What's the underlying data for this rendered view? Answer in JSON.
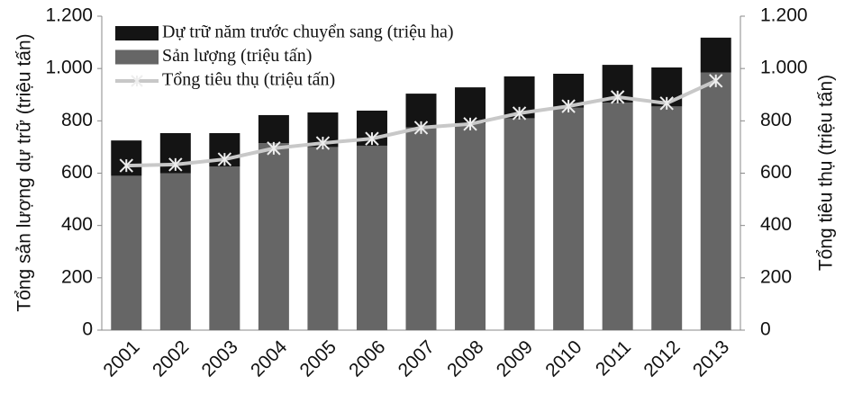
{
  "chart_data": {
    "type": "bar",
    "categories": [
      "2001",
      "2002",
      "2003",
      "2004",
      "2005",
      "2006",
      "2007",
      "2008",
      "2009",
      "2010",
      "2011",
      "2012",
      "2013"
    ],
    "series": [
      {
        "name": "Sản lượng (triệu tấn)",
        "color": "#666666",
        "stack": "a",
        "values": [
          590,
          600,
          625,
          715,
          700,
          705,
          775,
          790,
          810,
          850,
          870,
          855,
          985
        ]
      },
      {
        "name": "Dự trữ năm trước chuyển sang (triệu ha)",
        "color": "#141414",
        "stack": "a",
        "values": [
          135,
          153,
          128,
          107,
          132,
          134,
          129,
          138,
          160,
          130,
          144,
          149,
          133
        ]
      },
      {
        "name": "Tổng tiêu thụ (triệu tấn)",
        "color": "#c8c8c8",
        "type": "line",
        "axis": "y2",
        "values": [
          629,
          633,
          653,
          695,
          715,
          732,
          774,
          788,
          829,
          856,
          891,
          867,
          953
        ]
      }
    ],
    "ylabel": "Tổng sản lượng dự trữ (triệu tấn)",
    "y2label": "Tổng tiêu thụ (triệu tấn)",
    "ylim": [
      0,
      1200
    ],
    "yticks": [
      0,
      200,
      400,
      600,
      800,
      {
        "value": 1000,
        "label": "1.000"
      },
      {
        "value": 1200,
        "label": "1.200"
      }
    ],
    "y2lim": [
      0,
      1200
    ],
    "y2ticks": [
      0,
      200,
      400,
      600,
      800,
      {
        "value": 1000,
        "label": "1.000"
      },
      {
        "value": 1200,
        "label": "1.200"
      }
    ],
    "legend": "upper left"
  }
}
